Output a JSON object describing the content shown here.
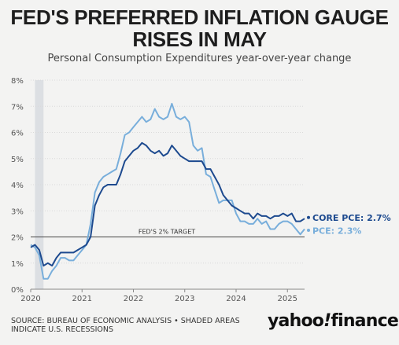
{
  "title_line1": "FED'S PREFERRED INFLATION GAUGE",
  "title_line2": "RISES IN MAY",
  "subtitle": "Personal Consumption Expenditures year-over-year change",
  "source_line1": "SOURCE: BUREAU OF ECONOMIC ANALYSIS • SHADED AREAS",
  "source_line2": "INDICATE U.S. RECESSIONS",
  "logo_left": "yahoo",
  "logo_mark": "!",
  "logo_right": "finance",
  "colors": {
    "pce": "#78aedb",
    "core": "#1d4a8f",
    "target": "#444444",
    "recession": "#dcdfe3",
    "grid": "#d9d9d9"
  },
  "chart_data": {
    "type": "line",
    "title": "FED'S PREFERRED INFLATION GAUGE RISES IN MAY",
    "subtitle": "Personal Consumption Expenditures year-over-year change",
    "xlabel": "",
    "ylabel": "",
    "x_ticks": [
      "2020",
      "2021",
      "2022",
      "2023",
      "2024",
      "2025"
    ],
    "y_ticks": [
      "0%",
      "1%",
      "2%",
      "3%",
      "4%",
      "5%",
      "6%",
      "7%",
      "8%"
    ],
    "xlim": [
      "2020-01",
      "2025-05"
    ],
    "ylim": [
      0,
      8
    ],
    "grid": true,
    "recession": [
      "2020-02",
      "2020-04"
    ],
    "target": {
      "value": 2,
      "label": "FED'S 2% TARGET"
    },
    "series": [
      {
        "name": "CORE PCE",
        "end_label": "CORE PCE: 2.7%",
        "color": "#1d4a8f",
        "x": [
          "2020-01",
          "2020-02",
          "2020-03",
          "2020-04",
          "2020-05",
          "2020-06",
          "2020-07",
          "2020-08",
          "2020-09",
          "2020-10",
          "2020-11",
          "2020-12",
          "2021-01",
          "2021-02",
          "2021-03",
          "2021-04",
          "2021-05",
          "2021-06",
          "2021-07",
          "2021-08",
          "2021-09",
          "2021-10",
          "2021-11",
          "2021-12",
          "2022-01",
          "2022-02",
          "2022-03",
          "2022-04",
          "2022-05",
          "2022-06",
          "2022-07",
          "2022-08",
          "2022-09",
          "2022-10",
          "2022-11",
          "2022-12",
          "2023-01",
          "2023-02",
          "2023-03",
          "2023-04",
          "2023-05",
          "2023-06",
          "2023-07",
          "2023-08",
          "2023-09",
          "2023-10",
          "2023-11",
          "2023-12",
          "2024-01",
          "2024-02",
          "2024-03",
          "2024-04",
          "2024-05",
          "2024-06",
          "2024-07",
          "2024-08",
          "2024-09",
          "2024-10",
          "2024-11",
          "2024-12",
          "2025-01",
          "2025-02",
          "2025-03",
          "2025-04",
          "2025-05"
        ],
        "values": [
          1.6,
          1.7,
          1.5,
          0.9,
          1.0,
          0.9,
          1.2,
          1.4,
          1.4,
          1.4,
          1.4,
          1.5,
          1.6,
          1.7,
          2.0,
          3.2,
          3.6,
          3.9,
          4.0,
          4.0,
          4.0,
          4.4,
          4.9,
          5.1,
          5.3,
          5.4,
          5.6,
          5.5,
          5.3,
          5.2,
          5.3,
          5.1,
          5.2,
          5.5,
          5.3,
          5.1,
          5.0,
          4.9,
          4.9,
          4.9,
          4.9,
          4.6,
          4.6,
          4.3,
          4.0,
          3.6,
          3.4,
          3.2,
          3.1,
          3.0,
          2.9,
          2.9,
          2.7,
          2.9,
          2.8,
          2.8,
          2.7,
          2.8,
          2.8,
          2.9,
          2.8,
          2.9,
          2.6,
          2.6,
          2.7
        ]
      },
      {
        "name": "PCE",
        "end_label": "PCE: 2.3%",
        "color": "#78aedb",
        "x": [
          "2020-01",
          "2020-02",
          "2020-03",
          "2020-04",
          "2020-05",
          "2020-06",
          "2020-07",
          "2020-08",
          "2020-09",
          "2020-10",
          "2020-11",
          "2020-12",
          "2021-01",
          "2021-02",
          "2021-03",
          "2021-04",
          "2021-05",
          "2021-06",
          "2021-07",
          "2021-08",
          "2021-09",
          "2021-10",
          "2021-11",
          "2021-12",
          "2022-01",
          "2022-02",
          "2022-03",
          "2022-04",
          "2022-05",
          "2022-06",
          "2022-07",
          "2022-08",
          "2022-09",
          "2022-10",
          "2022-11",
          "2022-12",
          "2023-01",
          "2023-02",
          "2023-03",
          "2023-04",
          "2023-05",
          "2023-06",
          "2023-07",
          "2023-08",
          "2023-09",
          "2023-10",
          "2023-11",
          "2023-12",
          "2024-01",
          "2024-02",
          "2024-03",
          "2024-04",
          "2024-05",
          "2024-06",
          "2024-07",
          "2024-08",
          "2024-09",
          "2024-10",
          "2024-11",
          "2024-12",
          "2025-01",
          "2025-02",
          "2025-03",
          "2025-04",
          "2025-05"
        ],
        "values": [
          1.7,
          1.6,
          1.3,
          0.4,
          0.4,
          0.7,
          0.9,
          1.2,
          1.2,
          1.1,
          1.1,
          1.3,
          1.5,
          1.7,
          2.5,
          3.7,
          4.1,
          4.3,
          4.4,
          4.5,
          4.6,
          5.2,
          5.9,
          6.0,
          6.2,
          6.4,
          6.6,
          6.4,
          6.5,
          6.9,
          6.6,
          6.5,
          6.6,
          7.1,
          6.6,
          6.5,
          6.6,
          6.4,
          5.5,
          5.3,
          5.4,
          4.4,
          4.3,
          3.8,
          3.3,
          3.4,
          3.4,
          3.4,
          2.9,
          2.6,
          2.6,
          2.5,
          2.5,
          2.7,
          2.5,
          2.6,
          2.3,
          2.3,
          2.5,
          2.6,
          2.6,
          2.5,
          2.3,
          2.1,
          2.3
        ]
      }
    ]
  }
}
